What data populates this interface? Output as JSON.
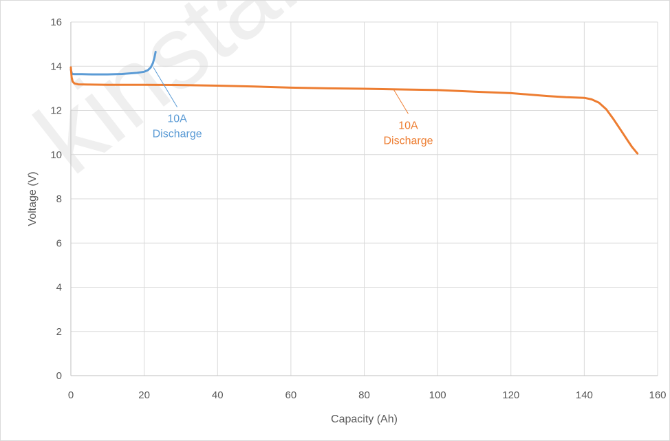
{
  "watermark": "kinstar",
  "chart_data": {
    "type": "line",
    "title": "",
    "xlabel": "Capacity (Ah)",
    "ylabel": "Voltage (V)",
    "xlim": [
      0,
      160
    ],
    "ylim": [
      0,
      16
    ],
    "xticks": [
      0,
      20,
      40,
      60,
      80,
      100,
      120,
      140,
      160
    ],
    "yticks": [
      0,
      2,
      4,
      6,
      8,
      10,
      12,
      14,
      16
    ],
    "grid": true,
    "legend": "none",
    "series": [
      {
        "color": "#5B9BD5",
        "x": [
          0,
          0.3,
          1,
          3,
          6,
          10,
          14,
          18,
          20,
          21,
          21.8,
          22.4,
          22.8,
          23.1
        ],
        "y": [
          13.85,
          13.65,
          13.64,
          13.64,
          13.63,
          13.63,
          13.65,
          13.7,
          13.75,
          13.82,
          13.95,
          14.15,
          14.4,
          14.65
        ]
      },
      {
        "color": "#ED7D31",
        "x": [
          0,
          0.2,
          0.5,
          1,
          2,
          5,
          10,
          20,
          30,
          40,
          50,
          60,
          70,
          80,
          90,
          100,
          110,
          120,
          130,
          135,
          140,
          142,
          144,
          146,
          148,
          150,
          152,
          153,
          154,
          154.5
        ],
        "y": [
          13.95,
          13.5,
          13.3,
          13.22,
          13.18,
          13.17,
          13.16,
          13.16,
          13.15,
          13.12,
          13.08,
          13.03,
          13.0,
          12.98,
          12.95,
          12.92,
          12.85,
          12.78,
          12.65,
          12.6,
          12.57,
          12.5,
          12.35,
          12.05,
          11.6,
          11.1,
          10.6,
          10.35,
          10.15,
          10.05
        ]
      }
    ],
    "annotations": [
      {
        "line1": "10A",
        "line2": "Discharge",
        "color": "#5B9BD5",
        "target_x": 22.5,
        "target_y": 13.95,
        "label_x": 29,
        "label_y": 11.9
      },
      {
        "line1": "10A",
        "line2": "Discharge",
        "color": "#ED7D31",
        "target_x": 88,
        "target_y": 12.95,
        "label_x": 92,
        "label_y": 11.6
      }
    ]
  }
}
